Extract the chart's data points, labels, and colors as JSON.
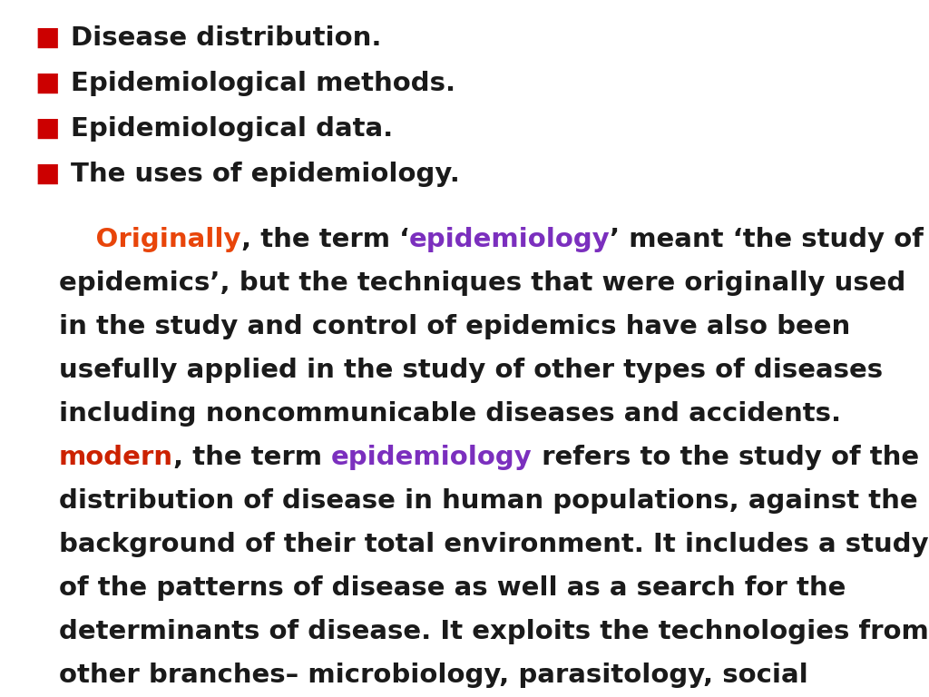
{
  "background_color": "#ffffff",
  "bullet_color": "#cc0000",
  "bullet_items": [
    "Disease distribution.",
    "Epidemiological methods.",
    "Epidemiological data.",
    "The uses of epidemiology."
  ],
  "orange_color": "#e8450a",
  "purple_color": "#7b2fbe",
  "red_color": "#cc2200",
  "black_color": "#1a1a1a",
  "bullet_fontsize": 21,
  "body_fontsize": 21,
  "last_line_fontsize": 25,
  "fig_width": 10.24,
  "fig_height": 7.68,
  "dpi": 100
}
